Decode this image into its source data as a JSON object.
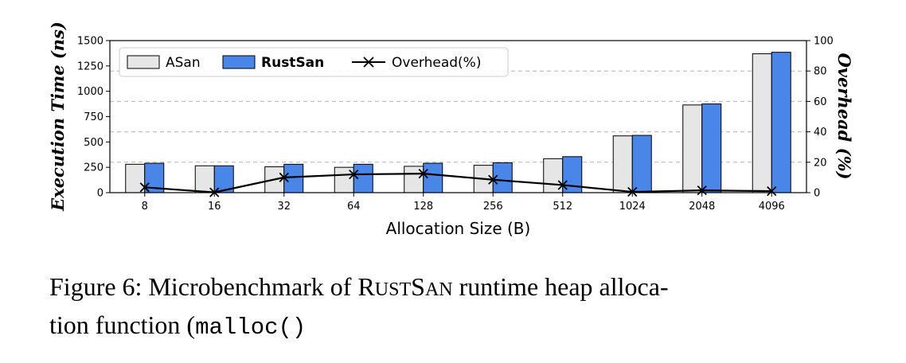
{
  "chart_data": {
    "type": "bar+line",
    "categories": [
      "8",
      "16",
      "32",
      "64",
      "128",
      "256",
      "512",
      "1024",
      "2048",
      "4096"
    ],
    "series": [
      {
        "name": "ASan",
        "axis": "left",
        "kind": "bar",
        "color": "#e6e6e6",
        "values": [
          280,
          265,
          255,
          250,
          260,
          270,
          335,
          560,
          865,
          1370
        ]
      },
      {
        "name": "RustSan",
        "axis": "left",
        "kind": "bar",
        "color": "#4a86e8",
        "values": [
          290,
          265,
          280,
          280,
          290,
          295,
          355,
          565,
          875,
          1385
        ]
      },
      {
        "name": "Overhead(%)",
        "axis": "right",
        "kind": "line",
        "color": "#000000",
        "marker": "x",
        "values": [
          3.5,
          0.2,
          10,
          12,
          12.5,
          8.5,
          5,
          0.5,
          1.5,
          1
        ]
      }
    ],
    "xlabel": "Allocation Size (B)",
    "ylabel_left": "Execution Time (ns)",
    "ylabel_right": "Overhead (%)",
    "ylim_left": [
      0,
      1500
    ],
    "yticks_left": [
      0,
      250,
      500,
      750,
      1000,
      1250,
      1500
    ],
    "ylim_right": [
      0,
      100
    ],
    "yticks_right": [
      0,
      20,
      40,
      60,
      80,
      100
    ],
    "grid": "horizontal-dashed",
    "legend_position": "top-left",
    "legend_bold": [
      "RustSan"
    ]
  },
  "caption": {
    "prefix": "Figure 6: Microbenchmark of ",
    "name_R": "R",
    "name_UST": "UST",
    "name_S": "S",
    "name_AN": "AN",
    "suffix_line1": " runtime heap alloca-",
    "line2_text": "tion function (",
    "code": "malloc()"
  }
}
